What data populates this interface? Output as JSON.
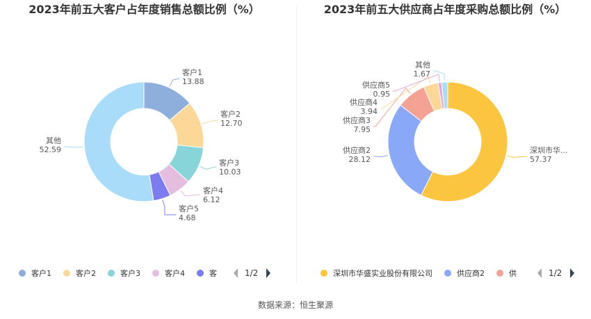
{
  "chart_data": [
    {
      "type": "pie",
      "title": "2023年前五大客户占年度销售总额比例（%）",
      "series": [
        {
          "name": "客户1",
          "value": 13.88,
          "value_label": "13.88",
          "color": "#8eaedb"
        },
        {
          "name": "客户2",
          "value": 12.7,
          "value_label": "12.70",
          "color": "#fcd898"
        },
        {
          "name": "客户3",
          "value": 10.03,
          "value_label": "10.03",
          "color": "#87d5d8"
        },
        {
          "name": "客户4",
          "value": 6.12,
          "value_label": "6.12",
          "color": "#e5bedf"
        },
        {
          "name": "客户5",
          "value": 4.68,
          "value_label": "4.68",
          "color": "#7c7cf0"
        },
        {
          "name": "其他",
          "value": 52.59,
          "value_label": "52.59",
          "color": "#a8dcf8"
        }
      ],
      "legend": {
        "position": "bottom",
        "visible": [
          "客户1",
          "客户2",
          "客户3",
          "客户4"
        ],
        "truncated": "客",
        "page": "1/2"
      }
    },
    {
      "type": "pie",
      "title": "2023年前五大供应商占年度采购总额比例（%）",
      "series": [
        {
          "name": "深圳市华盛实业股份有限公司",
          "short_label": "深圳市华...",
          "value": 57.37,
          "value_label": "57.37",
          "color": "#fbc53f"
        },
        {
          "name": "供应商2",
          "value": 28.12,
          "value_label": "28.12",
          "color": "#8aa8f8"
        },
        {
          "name": "供应商3",
          "value": 7.95,
          "value_label": "7.95",
          "color": "#f4a294"
        },
        {
          "name": "供应商4",
          "value": 3.94,
          "value_label": "3.94",
          "color": "#fcd898"
        },
        {
          "name": "供应商5",
          "value": 0.95,
          "value_label": "0.95",
          "color": "#e2a8d8"
        },
        {
          "name": "其他",
          "value": 1.67,
          "value_label": "1.67",
          "color": "#a8dcf8"
        }
      ],
      "legend": {
        "position": "bottom",
        "visible": [
          "深圳市华盛实业股份有限公司",
          "供应商2"
        ],
        "truncated": "供",
        "page": "1/2"
      }
    }
  ],
  "source": "数据来源：恒生聚源"
}
